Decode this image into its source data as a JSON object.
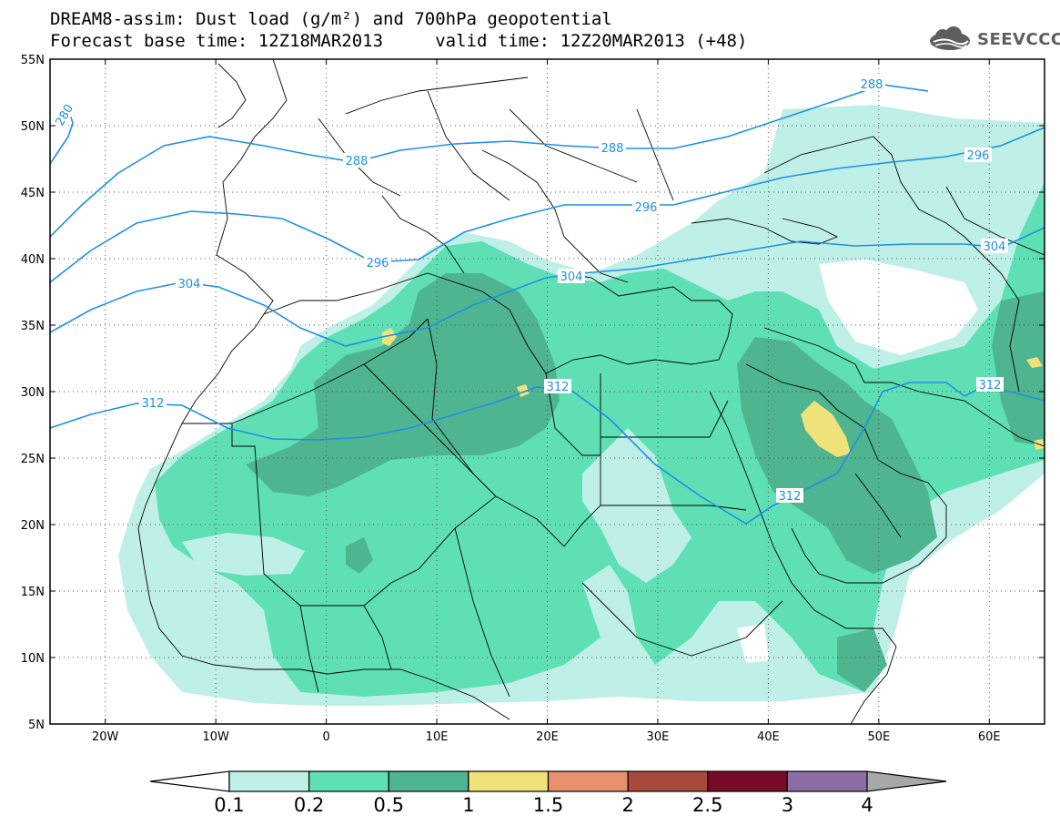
{
  "title": {
    "line1": "DREAM8-assim: Dust load (g/m²) and 700hPa geopotential",
    "line2": "Forecast base time: 12Z18MAR2013     valid time: 12Z20MAR2013 (+48)"
  },
  "logo": {
    "text": "SEEVCCC",
    "icon": "cloud-icon"
  },
  "map": {
    "lon_range": [
      -25,
      65
    ],
    "lat_range": [
      5,
      55
    ],
    "lat_labels": [
      "55N",
      "50N",
      "45N",
      "40N",
      "35N",
      "30N",
      "25N",
      "20N",
      "15N",
      "10N",
      "5N"
    ],
    "lon_labels": [
      "20W",
      "10W",
      "0",
      "10E",
      "20E",
      "30E",
      "40E",
      "50E",
      "60E"
    ],
    "contour_labels": [
      "280",
      "288",
      "288",
      "288",
      "296",
      "296",
      "296",
      "304",
      "304",
      "304",
      "312",
      "312",
      "312",
      "312"
    ],
    "colors": {
      "ocean": "#ffffff",
      "border": "#000000",
      "contour": "#1e90e6",
      "grid": "#555555"
    }
  },
  "legend": {
    "labels": [
      "0.1",
      "0.2",
      "0.5",
      "1",
      "1.5",
      "2",
      "2.5",
      "3",
      "4"
    ],
    "colors": [
      "#ffffff",
      "#bff0e8",
      "#5ee0b4",
      "#4fb490",
      "#f0e27a",
      "#e8906a",
      "#a84a3c",
      "#780a2a",
      "#8c6ea4",
      "#a8a8a8"
    ]
  }
}
